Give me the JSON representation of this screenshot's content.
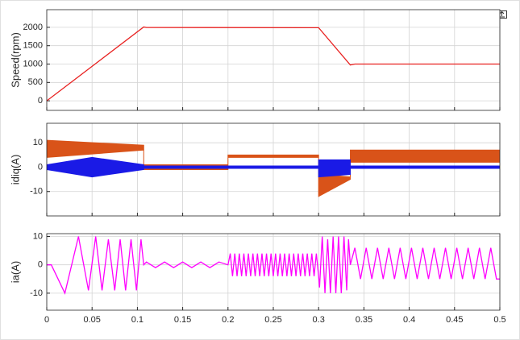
{
  "chart_data": [
    {
      "type": "line",
      "y_label": "Speed(rpm)",
      "color": "#e8201f",
      "x": [
        0,
        0.107,
        0.11,
        0.3,
        0.335,
        0.34,
        0.5
      ],
      "values": [
        0,
        2010,
        1995,
        1990,
        975,
        1000,
        1000
      ],
      "xlim": [
        0,
        0.5
      ],
      "ylim": [
        -260,
        2480
      ],
      "xticks": [
        0,
        0.05,
        0.1,
        0.15,
        0.2,
        0.25,
        0.3,
        0.35,
        0.4,
        0.45,
        0.5
      ],
      "yticks": [
        0,
        500,
        1000,
        1500,
        2000
      ],
      "grid": true,
      "xtick_labels": false
    },
    {
      "type": "band",
      "y_label": "idiq(A)",
      "series": [
        {
          "color": "#d95319",
          "x": [
            0,
            0.107,
            0.107,
            0.2,
            0.2,
            0.3,
            0.3,
            0.335,
            0.335,
            0.5
          ],
          "high": [
            11,
            9,
            1,
            1,
            5,
            5,
            -3,
            -4,
            7,
            7
          ],
          "low": [
            4,
            7,
            -1,
            -1,
            4,
            4,
            -12,
            -5,
            2,
            2
          ]
        },
        {
          "color": "#1a1ae6",
          "x": [
            0,
            0.05,
            0.107,
            0.107,
            0.3,
            0.3,
            0.335,
            0.335,
            0.5
          ],
          "high": [
            1,
            4,
            1,
            0.5,
            0.5,
            3,
            3,
            0.5,
            0.5
          ],
          "low": [
            -1,
            -4,
            -1,
            -0.5,
            -0.5,
            -4,
            -3,
            -0.5,
            -0.5
          ]
        }
      ],
      "xlim": [
        0,
        0.5
      ],
      "ylim": [
        -20,
        18
      ],
      "xticks": [
        0,
        0.05,
        0.1,
        0.15,
        0.2,
        0.25,
        0.3,
        0.35,
        0.4,
        0.45,
        0.5
      ],
      "yticks": [
        -10,
        0,
        10
      ],
      "grid": true,
      "xtick_labels": false
    },
    {
      "type": "line",
      "y_label": "ia(A)",
      "color": "#ff00ff",
      "x": [
        0,
        0.005,
        0.02,
        0.035,
        0.046,
        0.054,
        0.061,
        0.068,
        0.075,
        0.081,
        0.087,
        0.093,
        0.099,
        0.104,
        0.107,
        0.11,
        0.12,
        0.13,
        0.14,
        0.15,
        0.16,
        0.17,
        0.18,
        0.19,
        0.2,
        0.2025,
        0.205,
        0.2075,
        0.21,
        0.2125,
        0.215,
        0.2175,
        0.22,
        0.2225,
        0.225,
        0.2275,
        0.23,
        0.2325,
        0.235,
        0.2375,
        0.24,
        0.2425,
        0.245,
        0.2475,
        0.25,
        0.2525,
        0.255,
        0.2575,
        0.26,
        0.2625,
        0.265,
        0.2675,
        0.27,
        0.2725,
        0.275,
        0.2775,
        0.28,
        0.2825,
        0.285,
        0.2875,
        0.29,
        0.2925,
        0.295,
        0.2975,
        0.3,
        0.301,
        0.304,
        0.307,
        0.31,
        0.313,
        0.316,
        0.319,
        0.322,
        0.325,
        0.328,
        0.331,
        0.333,
        0.335,
        0.34,
        0.34625,
        0.3525,
        0.35875,
        0.365,
        0.37125,
        0.3775,
        0.38375,
        0.39,
        0.39625,
        0.4025,
        0.40875,
        0.415,
        0.42125,
        0.4275,
        0.43375,
        0.44,
        0.44625,
        0.4525,
        0.45875,
        0.465,
        0.47125,
        0.4775,
        0.48375,
        0.49,
        0.49625,
        0.5
      ],
      "values": [
        0,
        0,
        -10,
        10,
        -9,
        10,
        -9,
        9,
        -9,
        9,
        -9,
        9,
        -9,
        9,
        0,
        1,
        -1,
        1,
        -1,
        1,
        -1,
        1,
        -1,
        1,
        0,
        4,
        -4,
        4,
        -4,
        4,
        -4,
        4,
        -4,
        4,
        -4,
        4,
        -4,
        4,
        -4,
        4,
        -4,
        4,
        -4,
        4,
        -4,
        4,
        -4,
        4,
        -4,
        4,
        -4,
        4,
        -4,
        4,
        -4,
        4,
        -4,
        4,
        -4,
        4,
        -4,
        4,
        -4,
        4,
        -4,
        -8,
        10,
        -10,
        9,
        -10,
        10,
        -10,
        10,
        -10,
        10,
        -9,
        9,
        0,
        6,
        -5,
        6,
        -5,
        6,
        -5,
        6,
        -5,
        6,
        -5,
        6,
        -5,
        6,
        -5,
        6,
        -5,
        6,
        -5,
        6,
        -5,
        6,
        -5,
        6,
        -5,
        6,
        -5,
        -5
      ],
      "xlim": [
        0,
        0.5
      ],
      "ylim": [
        -16,
        11
      ],
      "xticks": [
        0,
        0.05,
        0.1,
        0.15,
        0.2,
        0.25,
        0.3,
        0.35,
        0.4,
        0.45,
        0.5
      ],
      "yticks": [
        -10,
        0,
        10
      ],
      "grid": true,
      "xtick_labels": true
    }
  ]
}
